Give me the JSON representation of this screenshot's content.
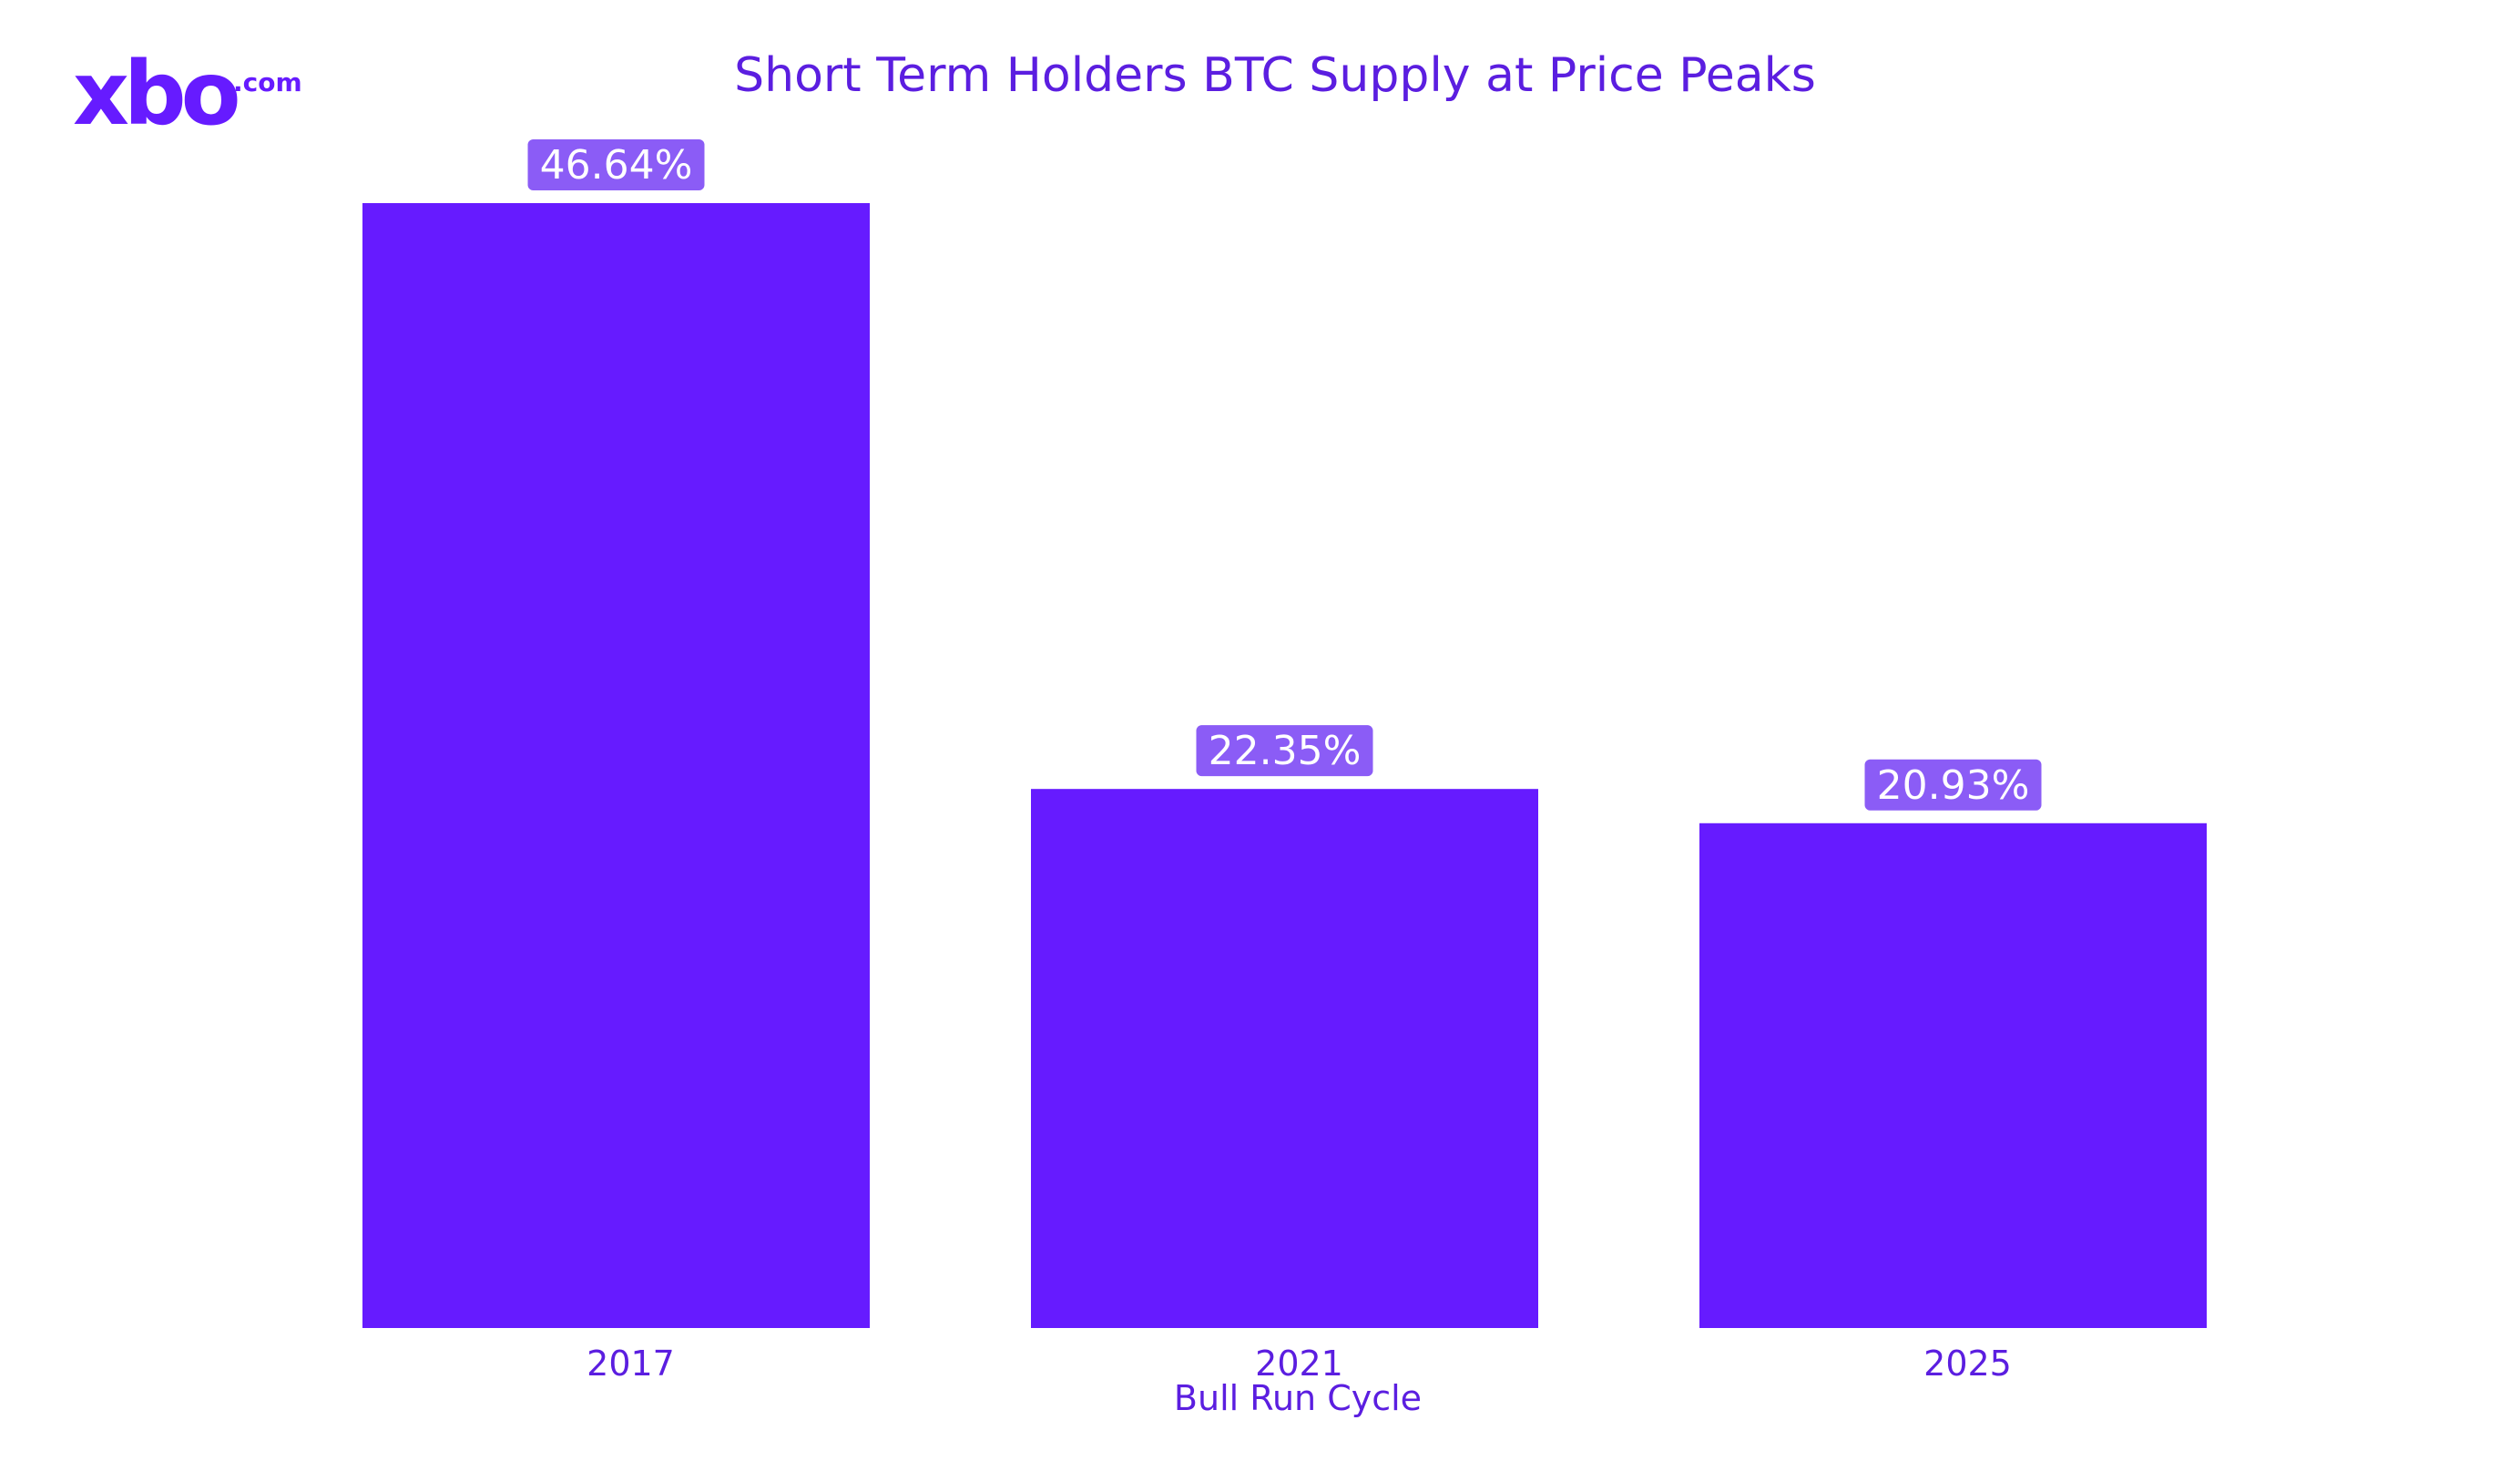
{
  "brand": {
    "logo_text": "xbo",
    "logo_suffix": ".com",
    "accent_color": "#661bff",
    "label_bg_color": "#8b5cf6",
    "text_color": "#5b1ee0"
  },
  "chart_data": {
    "type": "bar",
    "title": "Short Term Holders BTC Supply at Price Peaks",
    "categories": [
      "2017",
      "2021",
      "2025"
    ],
    "values": [
      46.64,
      22.35,
      20.93
    ],
    "value_labels": [
      "46.64%",
      "22.35%",
      "20.93%"
    ],
    "xlabel": "Bull Run Cycle",
    "ylabel": "",
    "ylim": [
      0,
      46.64
    ],
    "grid": false,
    "legend": "none"
  }
}
